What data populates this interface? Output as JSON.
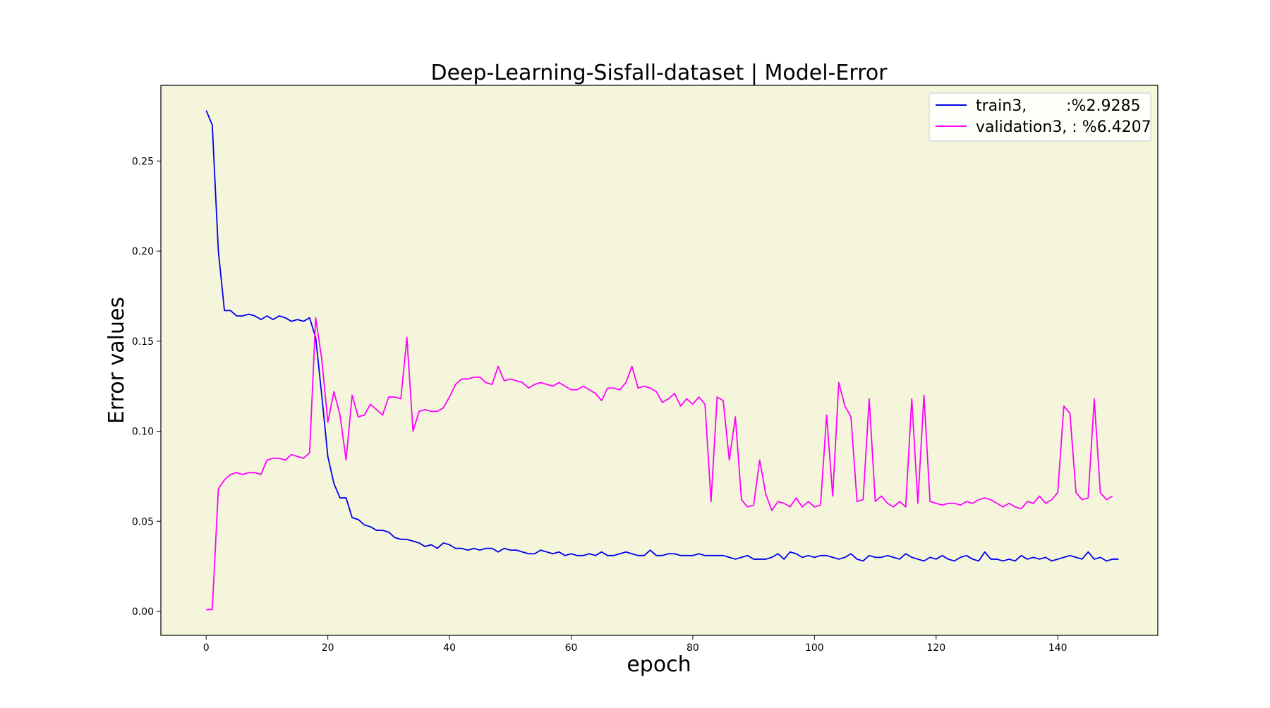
{
  "chart_data": {
    "type": "line",
    "title": "Deep-Learning-Sisfall-dataset  | Model-Error",
    "xlabel": "epoch",
    "ylabel": "Error values",
    "xlim": [
      -7.45,
      156.45
    ],
    "ylim": [
      -0.0133,
      0.292
    ],
    "xticks": [
      0,
      20,
      40,
      60,
      80,
      100,
      120,
      140
    ],
    "yticks": [
      0.0,
      0.05,
      0.1,
      0.15,
      0.2,
      0.25
    ],
    "xtick_labels": [
      "0",
      "20",
      "40",
      "60",
      "80",
      "100",
      "120",
      "140"
    ],
    "ytick_labels": [
      "0.00",
      "0.05",
      "0.10",
      "0.15",
      "0.20",
      "0.25"
    ],
    "grid": false,
    "background": "#f5f5dc",
    "legend_position": "top-right",
    "series": [
      {
        "name": "train3,        :%2.9285",
        "color": "#0000ee",
        "values": [
          0.278,
          0.27,
          0.2,
          0.167,
          0.167,
          0.164,
          0.164,
          0.165,
          0.164,
          0.162,
          0.164,
          0.162,
          0.164,
          0.163,
          0.161,
          0.162,
          0.161,
          0.163,
          0.152,
          0.12,
          0.086,
          0.071,
          0.063,
          0.063,
          0.052,
          0.051,
          0.048,
          0.047,
          0.045,
          0.045,
          0.044,
          0.041,
          0.04,
          0.04,
          0.039,
          0.038,
          0.036,
          0.037,
          0.035,
          0.038,
          0.037,
          0.035,
          0.035,
          0.034,
          0.035,
          0.034,
          0.035,
          0.035,
          0.033,
          0.035,
          0.034,
          0.034,
          0.033,
          0.032,
          0.032,
          0.034,
          0.033,
          0.032,
          0.033,
          0.031,
          0.032,
          0.031,
          0.031,
          0.032,
          0.031,
          0.033,
          0.031,
          0.031,
          0.032,
          0.033,
          0.032,
          0.031,
          0.031,
          0.034,
          0.031,
          0.031,
          0.032,
          0.032,
          0.031,
          0.031,
          0.031,
          0.032,
          0.031,
          0.031,
          0.031,
          0.031,
          0.03,
          0.029,
          0.03,
          0.031,
          0.029,
          0.029,
          0.029,
          0.03,
          0.032,
          0.029,
          0.033,
          0.032,
          0.03,
          0.031,
          0.03,
          0.031,
          0.031,
          0.03,
          0.029,
          0.03,
          0.032,
          0.029,
          0.028,
          0.031,
          0.03,
          0.03,
          0.031,
          0.03,
          0.029,
          0.032,
          0.03,
          0.029,
          0.028,
          0.03,
          0.029,
          0.031,
          0.029,
          0.028,
          0.03,
          0.031,
          0.029,
          0.028,
          0.033,
          0.029,
          0.029,
          0.028,
          0.029,
          0.028,
          0.031,
          0.029,
          0.03,
          0.029,
          0.03,
          0.028,
          0.029,
          0.03,
          0.031,
          0.03,
          0.029,
          0.033,
          0.029,
          0.03,
          0.028,
          0.029,
          0.029
        ]
      },
      {
        "name": "validation3, : %6.4207",
        "color": "#ff00ff",
        "values": [
          0.001,
          0.001,
          0.068,
          0.073,
          0.076,
          0.077,
          0.076,
          0.077,
          0.077,
          0.076,
          0.084,
          0.085,
          0.085,
          0.084,
          0.087,
          0.086,
          0.085,
          0.088,
          0.163,
          0.14,
          0.105,
          0.122,
          0.109,
          0.084,
          0.12,
          0.108,
          0.109,
          0.115,
          0.112,
          0.109,
          0.119,
          0.119,
          0.118,
          0.152,
          0.1,
          0.111,
          0.112,
          0.111,
          0.111,
          0.113,
          0.119,
          0.126,
          0.129,
          0.129,
          0.13,
          0.13,
          0.127,
          0.126,
          0.136,
          0.128,
          0.129,
          0.128,
          0.127,
          0.124,
          0.126,
          0.127,
          0.126,
          0.125,
          0.127,
          0.125,
          0.123,
          0.123,
          0.125,
          0.123,
          0.121,
          0.117,
          0.124,
          0.124,
          0.123,
          0.127,
          0.136,
          0.124,
          0.125,
          0.124,
          0.122,
          0.116,
          0.118,
          0.121,
          0.114,
          0.118,
          0.115,
          0.119,
          0.115,
          0.061,
          0.119,
          0.117,
          0.084,
          0.108,
          0.062,
          0.058,
          0.059,
          0.084,
          0.065,
          0.056,
          0.061,
          0.06,
          0.058,
          0.063,
          0.058,
          0.061,
          0.058,
          0.059,
          0.109,
          0.064,
          0.127,
          0.114,
          0.108,
          0.061,
          0.062,
          0.118,
          0.061,
          0.064,
          0.06,
          0.058,
          0.061,
          0.058,
          0.118,
          0.06,
          0.12,
          0.061,
          0.06,
          0.059,
          0.06,
          0.06,
          0.059,
          0.061,
          0.06,
          0.062,
          0.063,
          0.062,
          0.06,
          0.058,
          0.06,
          0.058,
          0.057,
          0.061,
          0.06,
          0.064,
          0.06,
          0.062,
          0.066,
          0.114,
          0.11,
          0.066,
          0.062,
          0.063,
          0.118,
          0.066,
          0.062,
          0.064
        ]
      }
    ]
  }
}
